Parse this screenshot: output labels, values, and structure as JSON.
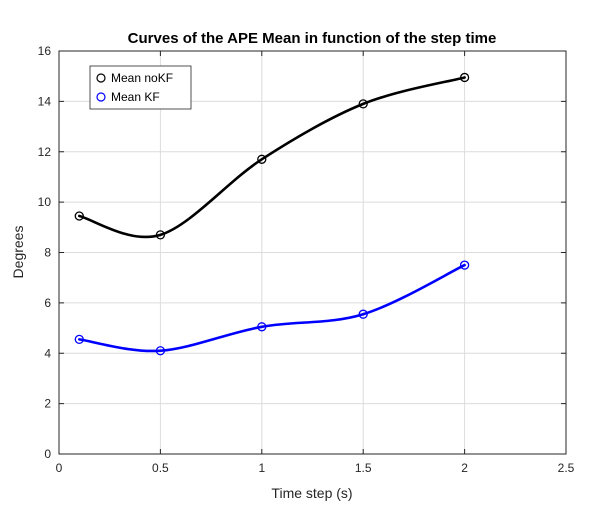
{
  "chart_data": {
    "type": "line",
    "title": "Curves of the APE Mean in function of the step time",
    "xlabel": "Time step (s)",
    "ylabel": "Degrees",
    "xlim": [
      0,
      2.5
    ],
    "ylim": [
      0,
      16
    ],
    "xticks": [
      0,
      0.5,
      1,
      1.5,
      2,
      2.5
    ],
    "xtick_labels": [
      "0",
      "0.5",
      "1",
      "1.5",
      "2",
      "2.5"
    ],
    "yticks": [
      0,
      2,
      4,
      6,
      8,
      10,
      12,
      14,
      16
    ],
    "ytick_labels": [
      "0",
      "2",
      "4",
      "6",
      "8",
      "10",
      "12",
      "14",
      "16"
    ],
    "grid": true,
    "legend_position": "top-left",
    "series": [
      {
        "name": "Mean noKF",
        "color": "#000000",
        "marker": "circle",
        "x": [
          0.1,
          0.5,
          1,
          1.5,
          2
        ],
        "y": [
          9.45,
          8.7,
          11.7,
          13.9,
          14.95
        ]
      },
      {
        "name": "Mean KF",
        "color": "#0000ff",
        "marker": "circle",
        "x": [
          0.1,
          0.5,
          1,
          1.5,
          2
        ],
        "y": [
          4.55,
          4.1,
          5.05,
          5.55,
          7.5
        ]
      }
    ]
  }
}
